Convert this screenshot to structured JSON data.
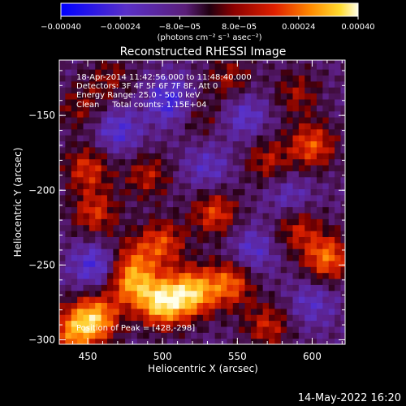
{
  "chart_data": {
    "type": "heatmap",
    "title": "Reconstructed RHESSI Image",
    "xlabel": "Heliocentric X (arcsec)",
    "ylabel": "Heliocentric Y (arcsec)",
    "xlim": [
      431,
      622
    ],
    "ylim": [
      -303,
      -113
    ],
    "xticks": [
      {
        "value": 450,
        "label": "450"
      },
      {
        "value": 500,
        "label": "500"
      },
      {
        "value": 550,
        "label": "550"
      },
      {
        "value": 600,
        "label": "600"
      }
    ],
    "yticks": [
      {
        "value": -150,
        "label": "−150"
      },
      {
        "value": -200,
        "label": "−200"
      },
      {
        "value": -250,
        "label": "−250"
      },
      {
        "value": -300,
        "label": "−300"
      }
    ],
    "colorbar": {
      "min": -0.0004,
      "max": 0.0004,
      "ticks": [
        {
          "value": -0.0004,
          "label": "−0.00040"
        },
        {
          "value": -0.00024,
          "label": "−0.00024"
        },
        {
          "value": -8e-05,
          "label": "−8.0e−05"
        },
        {
          "value": 8e-05,
          "label": "8.0e−05"
        },
        {
          "value": 0.00024,
          "label": "0.00024"
        },
        {
          "value": 0.0004,
          "label": "0.00040"
        }
      ],
      "unit_label": "(photons cm⁻² s⁻¹ asec⁻²)"
    },
    "annotations": [
      "18-Apr-2014 11:42:56.000 to 11:48:40.000",
      "Detectors: 3F 4F 5F 6F 7F 8F, Att 0",
      "Energy Range: 25.0 - 50.0 keV",
      "Clean     Total counts: 1.15E+04"
    ],
    "peak_label": "Position of Peak = [428,-298]",
    "timestamp": "14-May-2022 16:20",
    "hotspots": [
      {
        "x": 500,
        "y": -275,
        "value": 0.0004
      },
      {
        "x": 520,
        "y": -268,
        "value": 0.00036
      },
      {
        "x": 455,
        "y": -285,
        "value": 0.00034
      },
      {
        "x": 480,
        "y": -262,
        "value": 0.0003
      },
      {
        "x": 545,
        "y": -262,
        "value": 0.00026
      },
      {
        "x": 610,
        "y": -245,
        "value": 0.00028
      },
      {
        "x": 440,
        "y": -295,
        "value": 0.00026
      },
      {
        "x": 570,
        "y": -290,
        "value": 0.00018
      },
      {
        "x": 500,
        "y": -235,
        "value": 0.00022
      },
      {
        "x": 455,
        "y": -215,
        "value": 0.0002
      },
      {
        "x": 535,
        "y": -215,
        "value": 0.00022
      },
      {
        "x": 600,
        "y": -170,
        "value": 0.00024
      },
      {
        "x": 450,
        "y": -185,
        "value": 0.0002
      },
      {
        "x": 490,
        "y": -190,
        "value": 0.00016
      },
      {
        "x": 545,
        "y": -125,
        "value": 0.00014
      },
      {
        "x": 570,
        "y": -180,
        "value": 0.00016
      },
      {
        "x": 590,
        "y": -225,
        "value": 0.00018
      },
      {
        "x": 445,
        "y": -145,
        "value": 0.00012
      },
      {
        "x": 590,
        "y": -135,
        "value": 0.00014
      },
      {
        "x": 465,
        "y": -125,
        "value": 0.00012
      },
      {
        "x": 525,
        "y": -150,
        "value": 0.0001
      },
      {
        "x": 480,
        "y": -245,
        "value": 0.00014
      }
    ],
    "coldspots": [
      {
        "x": 505,
        "y": -140,
        "value": -0.0002
      },
      {
        "x": 455,
        "y": -250,
        "value": -0.00018
      },
      {
        "x": 560,
        "y": -240,
        "value": -0.00014
      },
      {
        "x": 470,
        "y": -160,
        "value": -0.00016
      },
      {
        "x": 585,
        "y": -205,
        "value": -0.00012
      },
      {
        "x": 530,
        "y": -185,
        "value": -0.00012
      },
      {
        "x": 600,
        "y": -275,
        "value": -0.00012
      },
      {
        "x": 555,
        "y": -150,
        "value": -0.00014
      }
    ]
  }
}
